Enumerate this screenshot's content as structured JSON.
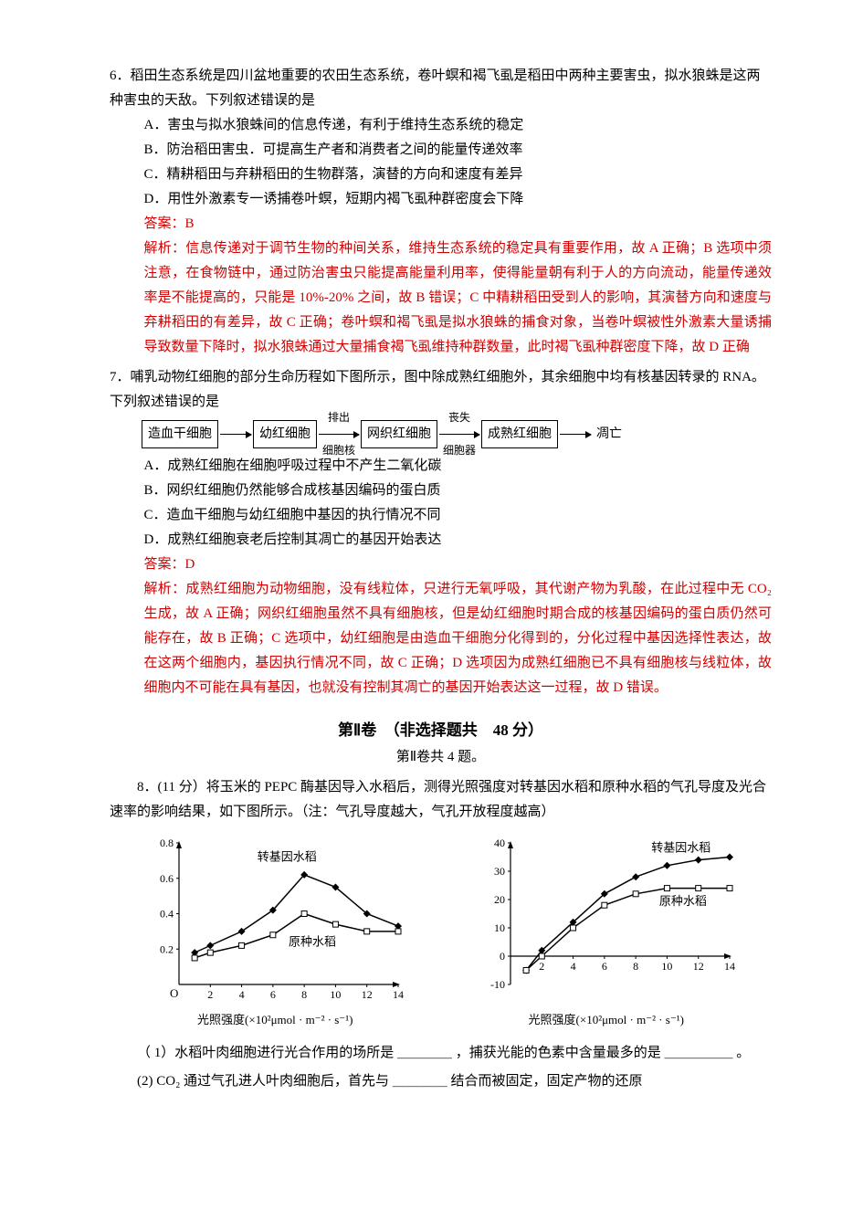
{
  "q6": {
    "head": "6．稻田生态系统是四川盆地重要的农田生态系统，卷叶螟和褐飞虱是稻田中两种主要害虫，拟水狼蛛是这两种害虫的天敌。下列叙述错误的是",
    "A": "A．害虫与拟水狼蛛间的信息传递，有利于维持生态系统的稳定",
    "B": "B．防治稻田害虫．可提高生产者和消费者之间的能量传递效率",
    "C": "C．精耕稻田与弃耕稻田的生物群落，演替的方向和速度有差异",
    "D": "D．用性外激素专一诱捕卷叶螟，短期内褐飞虱种群密度会下降",
    "ans": "答案：B",
    "exp": "解析：信息传递对于调节生物的种间关系，维持生态系统的稳定具有重要作用，故 A 正确；B 选项中须注意，在食物链中，通过防治害虫只能提高能量利用率，使得能量朝有利于人的方向流动，能量传递效率是不能提高的，只能是 10%-20% 之间，故 B 错误；C 中精耕稻田受到人的影响，其演替方向和速度与弃耕稻田的有差异，故 C 正确；卷叶螟和褐飞虱是拟水狼蛛的捕食对象，当卷叶螟被性外激素大量诱捕导致数量下降时，拟水狼蛛通过大量捕食褐飞虱维持种群数量，此时褐飞虱种群密度下降，故 D 正确"
  },
  "q7": {
    "head": "7．哺乳动物红细胞的部分生命历程如下图所示，图中除成熟红细胞外，其余细胞中均有核基因转录的 RNA。下列叙述错误的是",
    "flow": {
      "n1": "造血干细胞",
      "n2": "幼红细胞",
      "n3": "网织红细胞",
      "n4": "成熟红细胞",
      "end": "凋亡",
      "a2top": "排出",
      "a2bot": "细胞核",
      "a3top": "丧失",
      "a3bot": "细胞器"
    },
    "A": "A．成熟红细胞在细胞呼吸过程中不产生二氧化碳",
    "B": "B．网织红细胞仍然能够合成核基因编码的蛋白质",
    "C": "C．造血干细胞与幼红细胞中基因的执行情况不同",
    "D": "D．成熟红细胞衰老后控制其凋亡的基因开始表达",
    "ans": "答案：D",
    "exp": "解析：成熟红细胞为动物细胞，没有线粒体，只进行无氧呼吸，其代谢产物为乳酸，在此过程中无 CO₂ 生成，故 A 正确；网织红细胞虽然不具有细胞核，但是幼红细胞时期合成的核基因编码的蛋白质仍然可能存在，故 B 正确；C 选项中，幼红细胞是由造血干细胞分化得到的，分化过程中基因选择性表达，故在这两个细胞内，基因执行情况不同，故 C 正确；D 选项因为成熟红细胞已不具有细胞核与线粒体，故细胞内不可能在具有基因，也就没有控制其凋亡的基因开始表达这一过程，故 D 错误。"
  },
  "sec2": {
    "title": "第Ⅱ卷　（非选择题共　48 分）",
    "sub": "第Ⅱ卷共 4 题。"
  },
  "q8": {
    "head": "8．(11 分）将玉米的 PEPC 酶基因导入水稻后，测得光照强度对转基因水稻和原种水稻的气孔导度及光合速率的影响结果，如下图所示。（注：气孔导度越大，气孔开放程度越高）",
    "sub1": "（ 1）水稻叶肉细胞进行光合作用的场所是 ＿＿＿＿ ，捕获光能的色素中含量最多的是 ＿＿＿＿＿ 。",
    "sub2": "(2)  CO₂ 通过气孔进人叶肉细胞后，首先与 ＿＿＿＿ 结合而被固定，固定产物的还原",
    "labels": {
      "legend1": "转基因水稻",
      "legend2": "原种水稻",
      "xlabel": "光照强度(×10²μmol · m⁻² · s⁻¹)"
    },
    "chart1": {
      "xlim": [
        0,
        14
      ],
      "ylim": [
        0,
        0.8
      ],
      "yticks": [
        0.2,
        0.4,
        0.6,
        0.8
      ],
      "xticks": [
        2,
        4,
        6,
        8,
        10,
        12,
        14
      ],
      "series1_color": "#000000",
      "series2_color": "#000000",
      "series1_marker": "diamond-filled",
      "series2_marker": "square-open",
      "series1": [
        [
          1,
          0.18
        ],
        [
          2,
          0.22
        ],
        [
          4,
          0.3
        ],
        [
          6,
          0.42
        ],
        [
          8,
          0.62
        ],
        [
          10,
          0.55
        ],
        [
          12,
          0.4
        ],
        [
          14,
          0.33
        ]
      ],
      "series2": [
        [
          1,
          0.15
        ],
        [
          2,
          0.18
        ],
        [
          4,
          0.22
        ],
        [
          6,
          0.28
        ],
        [
          8,
          0.4
        ],
        [
          10,
          0.34
        ],
        [
          12,
          0.3
        ],
        [
          14,
          0.3
        ]
      ],
      "background_color": "#ffffff",
      "axis_color": "#000000",
      "line_width": 1.5
    },
    "chart2": {
      "xlim": [
        0,
        14
      ],
      "ylim": [
        -10,
        40
      ],
      "yticks": [
        -10,
        0,
        10,
        20,
        30,
        40
      ],
      "xticks": [
        2,
        4,
        6,
        8,
        10,
        12,
        14
      ],
      "series1_color": "#000000",
      "series2_color": "#000000",
      "series1_marker": "diamond-filled",
      "series2_marker": "square-open",
      "series1": [
        [
          1,
          -5
        ],
        [
          2,
          2
        ],
        [
          4,
          12
        ],
        [
          6,
          22
        ],
        [
          8,
          28
        ],
        [
          10,
          32
        ],
        [
          12,
          34
        ],
        [
          14,
          35
        ]
      ],
      "series2": [
        [
          1,
          -5
        ],
        [
          2,
          0
        ],
        [
          4,
          10
        ],
        [
          6,
          18
        ],
        [
          8,
          22
        ],
        [
          10,
          24
        ],
        [
          12,
          24
        ],
        [
          14,
          24
        ]
      ],
      "background_color": "#ffffff",
      "axis_color": "#000000",
      "line_width": 1.5
    }
  }
}
